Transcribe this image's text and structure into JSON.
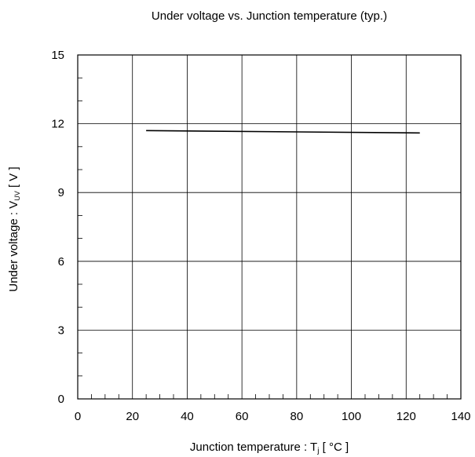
{
  "chart_data": {
    "type": "line",
    "title": "Under voltage vs. Junction temperature (typ.)",
    "xlabel": {
      "main": "Junction temperature : T",
      "sub": "j",
      "unit": " [ °C ]"
    },
    "ylabel": {
      "main": "Under voltage : V",
      "sub": "UV",
      "unit": " [ V ]"
    },
    "xlim": [
      0,
      140
    ],
    "ylim": [
      0,
      15
    ],
    "x_ticks": [
      0,
      20,
      40,
      60,
      80,
      100,
      120,
      140
    ],
    "y_ticks": [
      0,
      3,
      6,
      9,
      12,
      15
    ],
    "x_tick_labels": [
      "0",
      "20",
      "40",
      "60",
      "80",
      "100",
      "120",
      "140"
    ],
    "y_tick_labels": [
      "0",
      "3",
      "6",
      "9",
      "12",
      "15"
    ],
    "grid": true,
    "series": [
      {
        "x": [
          25,
          125
        ],
        "y": [
          11.7,
          11.6
        ],
        "color": "#000000"
      }
    ]
  }
}
